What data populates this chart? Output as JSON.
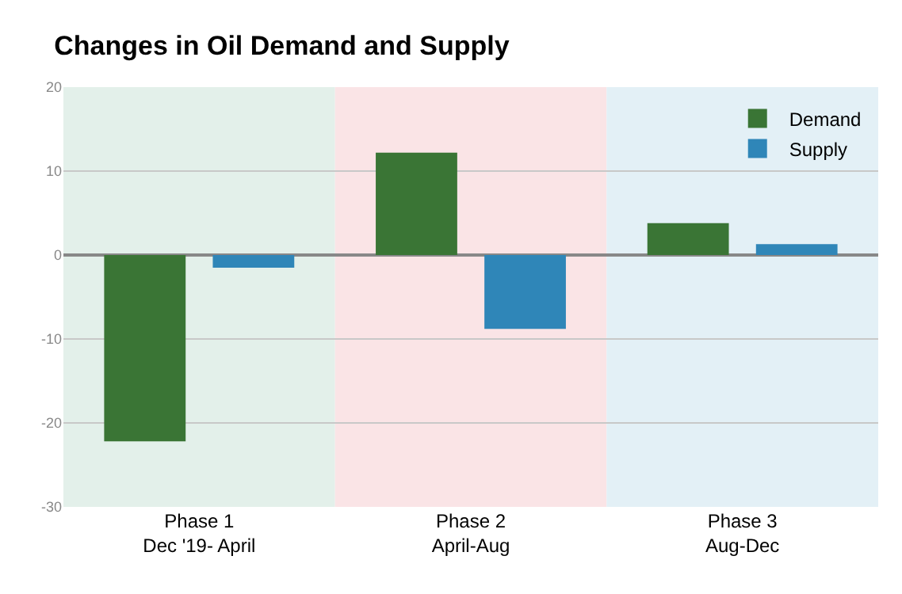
{
  "chart_data": {
    "type": "bar",
    "title": "Changes in Oil Demand and Supply",
    "categories": [
      "Phase 1\nDec '19- April",
      "Phase 2\nApril-Aug",
      "Phase 3\nAug-Dec"
    ],
    "series": [
      {
        "name": "Demand",
        "color": "#3a7535",
        "values": [
          -22.2,
          12.2,
          3.8
        ]
      },
      {
        "name": "Supply",
        "color": "#2f86b8",
        "values": [
          -1.5,
          -8.8,
          1.3
        ]
      }
    ],
    "ylim": [
      -30,
      20
    ],
    "yticks": [
      -30,
      -20,
      -10,
      0,
      10,
      20
    ],
    "grid": "y",
    "legend": "top right",
    "bands": [
      {
        "axis": "x",
        "from": "Phase 1\nDec '19- April",
        "to": "Phase 1\nDec '19- April",
        "color": "#e3f0ea"
      },
      {
        "axis": "x",
        "from": "Phase 2\nApril-Aug",
        "to": "Phase 2\nApril-Aug",
        "color": "#fae4e6"
      },
      {
        "axis": "x",
        "from": "Phase 3\nAug-Dec",
        "to": "Phase 3\nAug-Dec",
        "color": "#e3f0f6"
      }
    ]
  }
}
